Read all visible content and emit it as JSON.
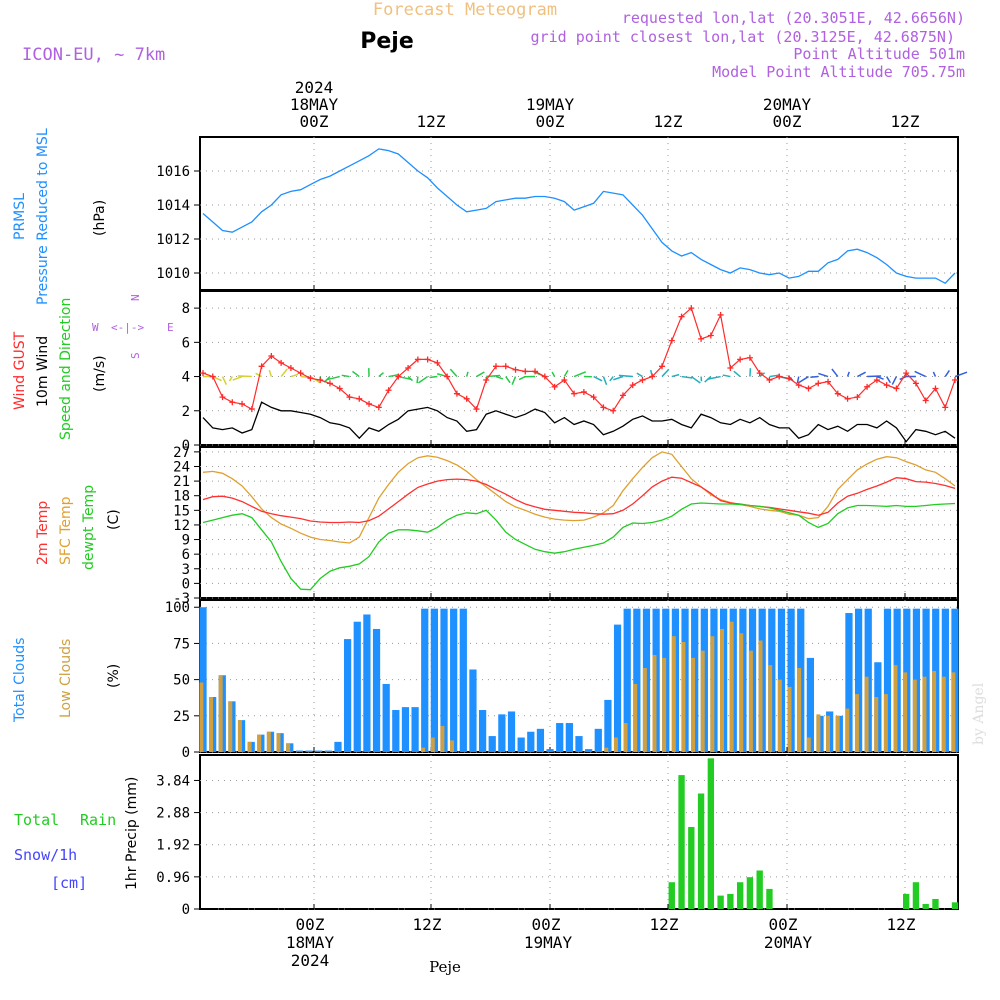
{
  "header": {
    "title": "Forecast Meteogram",
    "location": "Peje",
    "model": "ICON-EU, ~ 7km",
    "requested": "requested lon,lat (20.3051E, 42.6656N)",
    "gridpoint": "grid point closest lon,lat (20.3125E, 42.6875N)",
    "point_alt": "Point Altitude 501m",
    "model_alt": "Model Point Altitude 705.75m",
    "footer": "Peje",
    "watermark": "by Angel"
  },
  "colors": {
    "pressure": "#1e90ff",
    "gust": "#ff2a2a",
    "wind": "#000000",
    "temp2m": "#ff3030",
    "sfc": "#e0a030",
    "dewpt": "#22cc22",
    "total_clouds": "#1e90ff",
    "low_clouds": "#d0a040",
    "rain": "#22cc22",
    "snow": "#4444ff",
    "model_label": "#b060e0",
    "title": "#f0c080"
  },
  "time_axis": {
    "top_years": "2024",
    "top_dates": [
      "18MAY",
      "19MAY",
      "20MAY"
    ],
    "tick_labels": [
      "00Z",
      "12Z",
      "00Z",
      "12Z",
      "00Z",
      "12Z"
    ],
    "bottom_dates": [
      "18MAY",
      "19MAY",
      "20MAY"
    ],
    "bottom_year": "2024"
  },
  "panels": {
    "pressure": {
      "label1": "PRMSL",
      "label2": "Pressure Reduced to MSL",
      "unit": "(hPa)"
    },
    "wind": {
      "label1": "Wind GUST",
      "label2": "10m Wind",
      "label3": "Speed and Direction",
      "unit": "(m/s)",
      "compass": {
        "n": "N",
        "s": "S",
        "w": "W",
        "e": "E",
        "arrow": "<-|->"
      }
    },
    "temp": {
      "label1": "2m Temp",
      "label2": "SFC Temp",
      "label3": "dewpt Temp",
      "unit": "(C)"
    },
    "clouds": {
      "label1": "Total Clouds",
      "label2": "Low Clouds",
      "unit": "(%)"
    },
    "precip": {
      "label1": "Total",
      "label1b": "Rain",
      "label2": "Snow/1h",
      "label3": "[cm]",
      "unit": "1hr Precip (mm)"
    }
  },
  "chart_data": [
    {
      "type": "line",
      "title": "PRMSL Pressure Reduced to MSL",
      "ylabel": "(hPa)",
      "ylim": [
        1009,
        1018
      ],
      "yticks": [
        "1010",
        "1012",
        "1014",
        "1016"
      ],
      "series": [
        {
          "name": "PRMSL",
          "values": [
            1013.5,
            1013.0,
            1012.5,
            1012.4,
            1012.7,
            1013.0,
            1013.6,
            1014.0,
            1014.6,
            1014.8,
            1014.9,
            1015.2,
            1015.5,
            1015.7,
            1016.0,
            1016.3,
            1016.6,
            1016.9,
            1017.3,
            1017.2,
            1017.0,
            1016.5,
            1016.0,
            1015.6,
            1015.0,
            1014.5,
            1014.0,
            1013.6,
            1013.7,
            1013.8,
            1014.2,
            1014.3,
            1014.4,
            1014.4,
            1014.5,
            1014.5,
            1014.4,
            1014.2,
            1013.7,
            1013.9,
            1014.1,
            1014.8,
            1014.7,
            1014.6,
            1014.0,
            1013.4,
            1012.6,
            1011.8,
            1011.3,
            1011.0,
            1011.2,
            1010.8,
            1010.5,
            1010.2,
            1010.0,
            1010.3,
            1010.2,
            1010.0,
            1009.9,
            1010.0,
            1009.7,
            1009.8,
            1010.1,
            1010.1,
            1010.6,
            1010.8,
            1011.3,
            1011.4,
            1011.2,
            1010.9,
            1010.5,
            1010.0,
            1009.8,
            1009.7,
            1009.7,
            1009.7,
            1009.4,
            1010.0
          ]
        }
      ]
    },
    {
      "type": "line",
      "title": "Wind GUST / 10m Wind Speed and Direction",
      "ylabel": "(m/s)",
      "ylim": [
        0,
        9
      ],
      "yticks": [
        "0",
        "2",
        "4",
        "6",
        "8"
      ],
      "series": [
        {
          "name": "Wind GUST",
          "values": [
            4.2,
            4.0,
            2.8,
            2.5,
            2.4,
            2.1,
            4.6,
            5.2,
            4.8,
            4.5,
            4.2,
            3.9,
            3.8,
            3.6,
            3.3,
            2.8,
            2.7,
            2.4,
            2.2,
            3.2,
            4.0,
            4.5,
            5.0,
            5.0,
            4.8,
            4.0,
            3.0,
            2.7,
            2.1,
            3.8,
            4.6,
            4.6,
            4.4,
            4.3,
            4.3,
            4.0,
            3.4,
            3.8,
            3.0,
            3.1,
            2.8,
            2.2,
            2.0,
            2.9,
            3.5,
            3.8,
            4.0,
            4.6,
            6.1,
            7.5,
            8.0,
            6.2,
            6.4,
            7.6,
            4.5,
            5.0,
            5.1,
            4.2,
            3.8,
            4.0,
            3.9,
            3.5,
            3.3,
            3.6,
            3.7,
            3.0,
            2.7,
            2.8,
            3.4,
            3.8,
            3.5,
            3.3,
            4.2,
            3.6,
            2.6,
            3.3,
            2.2,
            3.8
          ]
        },
        {
          "name": "10m Wind",
          "values": [
            1.6,
            1.0,
            0.9,
            1.0,
            0.7,
            0.9,
            2.5,
            2.2,
            2.0,
            2.0,
            1.9,
            1.8,
            1.6,
            1.3,
            1.2,
            1.0,
            0.4,
            1.0,
            0.8,
            1.2,
            1.5,
            2.0,
            2.1,
            2.2,
            2.0,
            1.6,
            1.4,
            0.8,
            0.9,
            1.8,
            2.0,
            1.8,
            1.6,
            1.8,
            2.1,
            1.9,
            1.3,
            1.6,
            1.2,
            1.4,
            1.2,
            0.6,
            0.8,
            1.1,
            1.5,
            1.7,
            1.4,
            1.4,
            1.5,
            1.2,
            1.0,
            1.8,
            1.6,
            1.3,
            1.2,
            1.5,
            1.3,
            1.6,
            1.2,
            1.0,
            1.0,
            0.4,
            0.6,
            1.2,
            0.9,
            1.1,
            0.8,
            1.2,
            1.2,
            1.0,
            1.4,
            1.0,
            0.2,
            0.9,
            0.8,
            0.6,
            0.8,
            0.4
          ]
        }
      ]
    },
    {
      "type": "line",
      "title": "2m Temp / SFC Temp / dewpt Temp",
      "ylabel": "(C)",
      "ylim": [
        -3,
        28
      ],
      "yticks": [
        "-3",
        "0",
        "3",
        "6",
        "9",
        "12",
        "15",
        "18",
        "21",
        "24",
        "27"
      ],
      "series": [
        {
          "name": "2m Temp",
          "values": [
            17.2,
            17.8,
            17.9,
            17.5,
            16.8,
            15.8,
            14.8,
            14.3,
            13.9,
            13.6,
            13.3,
            12.8,
            12.6,
            12.5,
            12.5,
            12.6,
            12.5,
            12.9,
            13.8,
            15.3,
            16.8,
            18.3,
            19.7,
            20.4,
            21.0,
            21.3,
            21.4,
            21.3,
            21.0,
            20.3,
            19.3,
            18.3,
            17.2,
            16.3,
            15.7,
            15.2,
            15.0,
            14.8,
            14.6,
            14.5,
            14.3,
            14.2,
            14.3,
            15.0,
            16.3,
            18.0,
            19.8,
            21.0,
            21.8,
            21.6,
            20.7,
            19.8,
            18.5,
            17.0,
            16.5,
            16.3,
            16.0,
            15.8,
            15.6,
            15.3,
            15.0,
            14.7,
            14.4,
            14.0,
            14.6,
            16.5,
            17.9,
            18.5,
            19.3,
            20.0,
            20.8,
            21.7,
            21.5,
            20.9,
            20.8,
            20.5,
            20.1,
            19.5
          ]
        },
        {
          "name": "SFC Temp",
          "values": [
            22.8,
            23.0,
            22.6,
            21.5,
            20.0,
            17.8,
            15.3,
            13.5,
            12.2,
            11.3,
            10.3,
            9.5,
            9.0,
            8.8,
            8.5,
            8.3,
            9.5,
            13.5,
            17.5,
            20.3,
            22.8,
            24.6,
            25.8,
            26.2,
            25.9,
            25.2,
            24.3,
            23.0,
            21.3,
            19.8,
            18.3,
            16.8,
            15.7,
            15.0,
            14.2,
            13.6,
            13.2,
            13.0,
            12.9,
            13.0,
            13.6,
            14.5,
            16.0,
            19.0,
            21.5,
            23.8,
            25.8,
            27.0,
            26.5,
            24.0,
            21.5,
            19.8,
            18.2,
            17.2,
            16.6,
            16.2,
            15.8,
            15.3,
            15.0,
            14.8,
            14.2,
            14.0,
            13.3,
            13.5,
            15.8,
            19.3,
            21.3,
            23.3,
            24.5,
            25.5,
            26.0,
            25.8,
            25.0,
            24.3,
            23.3,
            22.8,
            21.5,
            20.0
          ]
        },
        {
          "name": "dewpt Temp",
          "values": [
            12.5,
            13.0,
            13.5,
            14.0,
            14.3,
            13.5,
            11.0,
            8.5,
            4.5,
            1.0,
            -1.2,
            -1.3,
            1.0,
            2.5,
            3.2,
            3.5,
            4.0,
            5.5,
            8.5,
            10.3,
            11.0,
            11.0,
            10.8,
            10.5,
            11.5,
            13.0,
            14.0,
            14.5,
            14.3,
            15.0,
            13.0,
            10.5,
            9.0,
            8.0,
            7.0,
            6.5,
            6.2,
            6.5,
            7.0,
            7.4,
            7.8,
            8.3,
            9.5,
            11.5,
            12.4,
            12.3,
            12.5,
            13.0,
            13.8,
            15.2,
            16.3,
            16.5,
            16.4,
            16.3,
            16.3,
            16.2,
            16.0,
            15.8,
            15.5,
            15.0,
            14.5,
            14.0,
            12.5,
            11.5,
            12.3,
            14.3,
            15.5,
            16.0,
            16.0,
            15.9,
            15.8,
            16.0,
            15.8,
            15.8,
            16.0,
            16.2,
            16.3,
            16.4
          ]
        }
      ]
    },
    {
      "type": "bar",
      "title": "Total Clouds / Low Clouds",
      "ylabel": "(%)",
      "ylim": [
        0,
        100
      ],
      "yticks": [
        "0",
        "25",
        "50",
        "75",
        "100"
      ],
      "series": [
        {
          "name": "Total Clouds",
          "values": [
            100,
            38,
            53,
            35,
            22,
            7,
            12,
            14,
            13,
            6,
            1,
            1,
            1,
            1,
            7,
            78,
            90,
            95,
            85,
            47,
            29,
            31,
            31,
            99,
            99,
            99,
            99,
            99,
            57,
            29,
            11,
            26,
            28,
            10,
            14,
            16,
            2,
            20,
            20,
            11,
            2,
            16,
            36,
            88,
            99,
            99,
            99,
            99,
            99,
            99,
            99,
            99,
            99,
            99,
            99,
            99,
            99,
            99,
            99,
            99,
            99,
            99,
            99,
            65,
            25,
            28,
            25,
            96,
            99,
            99,
            62,
            99,
            99,
            99,
            99,
            99,
            99,
            99,
            99
          ]
        },
        {
          "name": "Low Clouds",
          "values": [
            48,
            38,
            53,
            35,
            22,
            7,
            12,
            14,
            13,
            6,
            0,
            0,
            0,
            0,
            0,
            0,
            0,
            0,
            0,
            0,
            0,
            0,
            0,
            3,
            10,
            18,
            8,
            0,
            0,
            0,
            0,
            0,
            0,
            0,
            0,
            0,
            0,
            0,
            0,
            0,
            0,
            0,
            3,
            10,
            20,
            47,
            58,
            67,
            65,
            80,
            76,
            65,
            70,
            80,
            85,
            90,
            82,
            70,
            77,
            60,
            50,
            45,
            58,
            10,
            26,
            25,
            25,
            30,
            40,
            52,
            38,
            40,
            60,
            55,
            50,
            52,
            56,
            52,
            55
          ]
        }
      ]
    },
    {
      "type": "bar",
      "title": "Total Rain / Snow/1h",
      "ylabel": "1hr Precip (mm)",
      "ylim": [
        0,
        4.6
      ],
      "yticks": [
        "0",
        "0.96",
        "1.92",
        "2.88",
        "3.84"
      ],
      "series": [
        {
          "name": "Total Rain",
          "values": [
            0,
            0,
            0,
            0,
            0,
            0,
            0,
            0,
            0,
            0,
            0,
            0,
            0,
            0,
            0,
            0,
            0,
            0,
            0,
            0,
            0,
            0,
            0,
            0,
            0,
            0,
            0,
            0,
            0,
            0,
            0,
            0,
            0,
            0,
            0,
            0,
            0,
            0,
            0,
            0,
            0,
            0,
            0,
            0,
            0,
            0,
            0,
            0,
            0.8,
            4.0,
            2.45,
            3.45,
            4.5,
            0.4,
            0.45,
            0.8,
            0.95,
            1.15,
            0.6,
            0,
            0,
            0,
            0,
            0,
            0,
            0,
            0,
            0,
            0,
            0,
            0,
            0,
            0.45,
            0.8,
            0.15,
            0.3,
            0,
            0.2
          ]
        },
        {
          "name": "Snow/1h",
          "values": []
        }
      ]
    }
  ]
}
